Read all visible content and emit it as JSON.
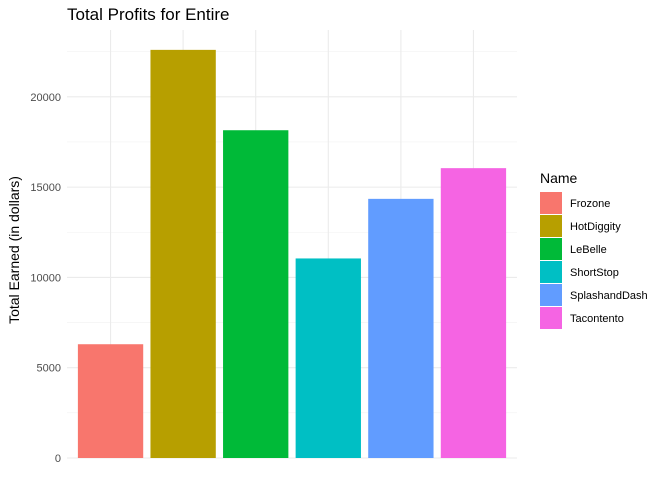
{
  "chart_data": {
    "type": "bar",
    "title": "Total Profits for Entire",
    "xlabel": "",
    "ylabel": "Total Earned (in dollars)",
    "categories": [
      "Frozone",
      "HotDiggity",
      "LeBelle",
      "ShortStop",
      "SplashandDash",
      "Tacontento"
    ],
    "values": [
      6300,
      22600,
      18150,
      11050,
      14350,
      16050
    ],
    "colors": [
      "#F8766D",
      "#B79F00",
      "#00BA38",
      "#00BFC4",
      "#619CFF",
      "#F564E3"
    ],
    "ylim": [
      0,
      23700
    ],
    "yticks": [
      0,
      5000,
      10000,
      15000,
      20000
    ],
    "x_tick_labels_shown": false,
    "grid": true,
    "legend": {
      "title": "Name",
      "position": "right",
      "entries": [
        "Frozone",
        "HotDiggity",
        "LeBelle",
        "ShortStop",
        "SplashandDash",
        "Tacontento"
      ]
    }
  }
}
